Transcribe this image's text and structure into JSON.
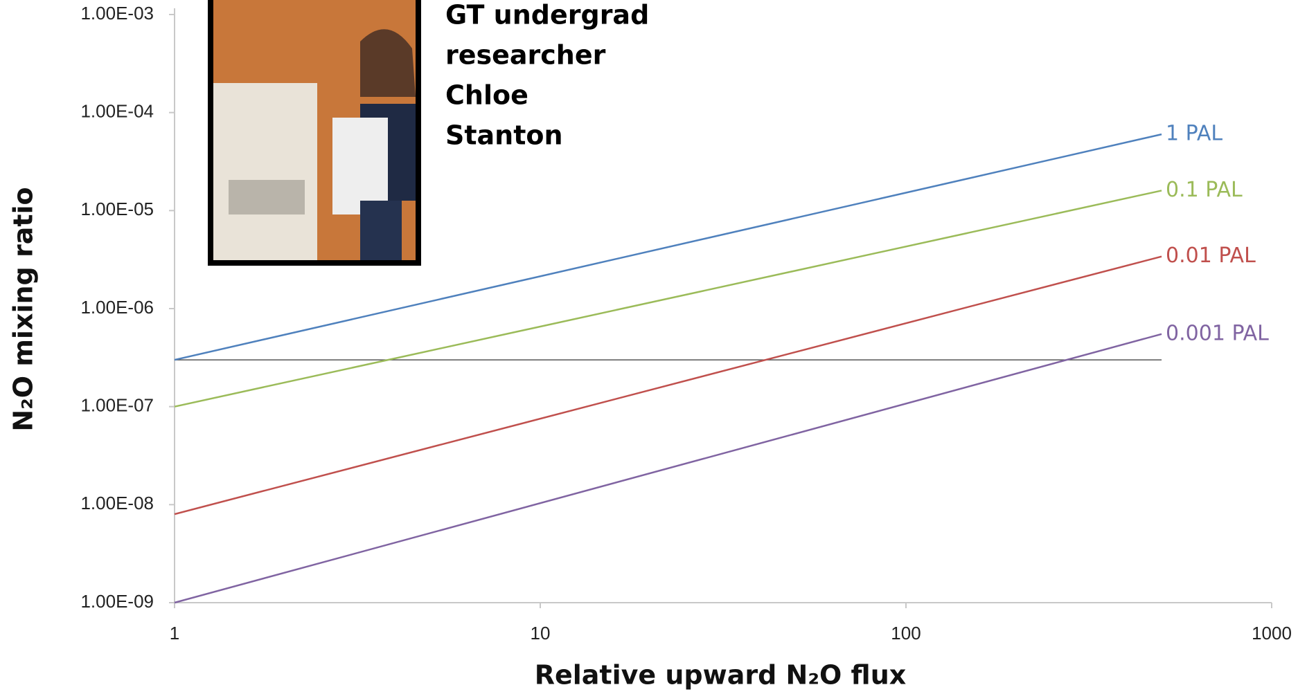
{
  "chart_data": {
    "type": "line",
    "x_label": "Relative upward N₂O flux",
    "y_label": "N₂O mixing ratio",
    "annotation": [
      "GT undergrad",
      "researcher",
      "Chloe",
      "Stanton"
    ],
    "x": [
      1,
      500
    ],
    "series": [
      {
        "name": "1 PAL",
        "color": "#4f81bd",
        "values": [
          3e-07,
          6e-05
        ]
      },
      {
        "name": "0.1 PAL",
        "color": "#9bbb59",
        "values": [
          1e-07,
          1.6e-05
        ]
      },
      {
        "name": "0.01 PAL",
        "color": "#c0504d",
        "values": [
          8e-09,
          3.4e-06
        ]
      },
      {
        "name": "0.001 PAL",
        "color": "#8064a2",
        "values": [
          1e-09,
          5.5e-07
        ]
      }
    ],
    "reference_line": {
      "value": 3e-07,
      "color": "#555555"
    },
    "log_x": true,
    "log_y": true,
    "xlim": [
      1,
      1000
    ],
    "xticks": [
      1,
      10,
      100,
      1000
    ],
    "ylim": [
      1e-09,
      0.001
    ],
    "yticks": [
      {
        "value": 1e-09,
        "label": "1.00E-09"
      },
      {
        "value": 1e-08,
        "label": "1.00E-08"
      },
      {
        "value": 1e-07,
        "label": "1.00E-07"
      },
      {
        "value": 1e-06,
        "label": "1.00E-06"
      },
      {
        "value": 1e-05,
        "label": "1.00E-05"
      },
      {
        "value": 0.0001,
        "label": "1.00E-04"
      },
      {
        "value": 0.001,
        "label": "1.00E-03"
      }
    ]
  }
}
